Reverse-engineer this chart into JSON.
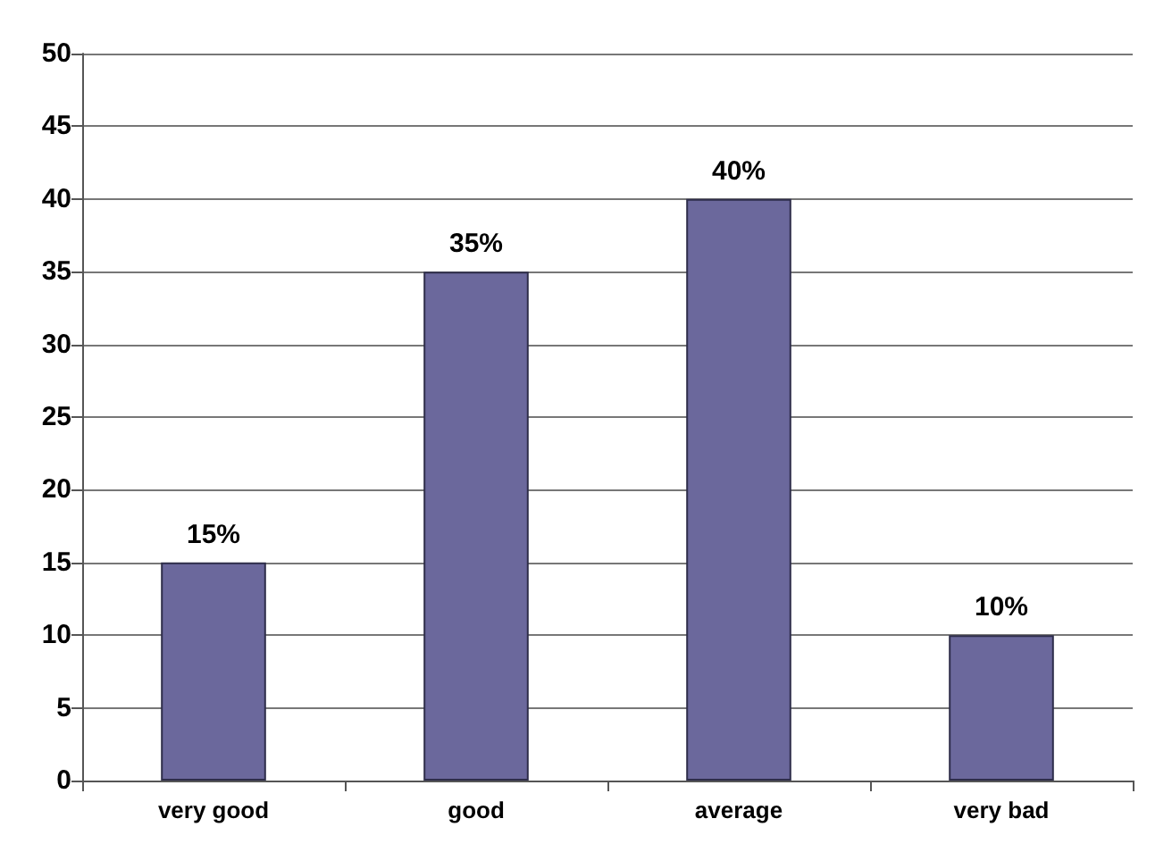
{
  "chart_data": {
    "type": "bar",
    "categories": [
      "very good",
      "good",
      "average",
      "very bad"
    ],
    "values": [
      15,
      35,
      40,
      10
    ],
    "color": "#6b689c",
    "value_labels": [
      "15%",
      "35%",
      "40%",
      "10%"
    ],
    "ylim": [
      0,
      50
    ],
    "yticks": [
      0,
      5,
      10,
      15,
      20,
      25,
      30,
      35,
      40,
      45,
      50
    ],
    "grid": "y"
  }
}
